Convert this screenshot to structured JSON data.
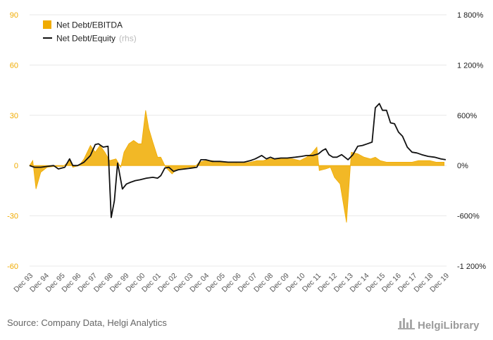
{
  "chart_data": {
    "type": "area+line",
    "title": "",
    "x_categories": [
      "Dec 93",
      "Dec 94",
      "Dec 95",
      "Dec 96",
      "Dec 97",
      "Dec 98",
      "Dec 99",
      "Dec 00",
      "Dec 01",
      "Dec 02",
      "Dec 03",
      "Dec 04",
      "Dec 05",
      "Dec 06",
      "Dec 07",
      "Dec 08",
      "Dec 09",
      "Dec 10",
      "Dec 11",
      "Dec 12",
      "Dec 13",
      "Dec 14",
      "Dec 15",
      "Dec 16",
      "Dec 17",
      "Dec 18",
      "Dec 19"
    ],
    "left_axis": {
      "ylim": [
        -60,
        90
      ],
      "ticks": [
        "90",
        "60",
        "30",
        "0",
        "-30",
        "-60"
      ],
      "tick_values": [
        90,
        60,
        30,
        0,
        -30,
        -60
      ],
      "color": "#f0ab00"
    },
    "right_axis": {
      "ylim": [
        -1200,
        1800
      ],
      "ticks": [
        "1 800%",
        "1 200%",
        "600%",
        "0%",
        "-600%",
        "-1 200%"
      ],
      "tick_values": [
        1800,
        1200,
        600,
        0,
        -600,
        -1200
      ]
    },
    "legend": {
      "placement": "top-left"
    },
    "series": [
      {
        "name": "Net Debt/EBITDA",
        "axis": "left",
        "type": "area",
        "color": "#f0ab00",
        "points": [
          [
            1993.9,
            0
          ],
          [
            1994.1,
            3
          ],
          [
            1994.3,
            -14
          ],
          [
            1994.6,
            -4
          ],
          [
            1995.0,
            -1
          ],
          [
            1995.5,
            -0.5
          ],
          [
            1996.0,
            -0.5
          ],
          [
            1996.4,
            3
          ],
          [
            1996.6,
            -1
          ],
          [
            1997.0,
            0
          ],
          [
            1997.3,
            4
          ],
          [
            1997.7,
            12
          ],
          [
            1998.0,
            8
          ],
          [
            1998.3,
            12
          ],
          [
            1998.6,
            8
          ],
          [
            1998.9,
            3
          ],
          [
            1999.3,
            4
          ],
          [
            1999.6,
            -1
          ],
          [
            1999.8,
            8
          ],
          [
            2000.1,
            13
          ],
          [
            2000.4,
            15
          ],
          [
            2000.7,
            13
          ],
          [
            2000.9,
            13
          ],
          [
            2001.15,
            33
          ],
          [
            2001.35,
            22
          ],
          [
            2001.6,
            14
          ],
          [
            2001.9,
            5
          ],
          [
            2002.1,
            5
          ],
          [
            2002.4,
            -1
          ],
          [
            2002.8,
            -5
          ],
          [
            2003.0,
            -3
          ],
          [
            2003.4,
            -2
          ],
          [
            2003.8,
            -1
          ],
          [
            2004.2,
            -1
          ],
          [
            2004.5,
            2
          ],
          [
            2004.9,
            3
          ],
          [
            2005.3,
            3
          ],
          [
            2005.7,
            2
          ],
          [
            2006.1,
            2
          ],
          [
            2006.5,
            2
          ],
          [
            2006.9,
            1.5
          ],
          [
            2007.3,
            1.5
          ],
          [
            2007.7,
            2
          ],
          [
            2008.1,
            3
          ],
          [
            2008.5,
            3
          ],
          [
            2008.9,
            4
          ],
          [
            2009.3,
            4
          ],
          [
            2009.8,
            4
          ],
          [
            2010.3,
            4
          ],
          [
            2010.8,
            3
          ],
          [
            2011.2,
            5
          ],
          [
            2011.5,
            7
          ],
          [
            2011.85,
            11
          ],
          [
            2012.0,
            -3
          ],
          [
            2012.4,
            -2
          ],
          [
            2012.7,
            -1
          ],
          [
            2012.95,
            -7
          ],
          [
            2013.3,
            -11
          ],
          [
            2013.7,
            -34
          ],
          [
            2014.0,
            8
          ],
          [
            2014.4,
            7
          ],
          [
            2014.8,
            5
          ],
          [
            2015.2,
            4
          ],
          [
            2015.5,
            5
          ],
          [
            2015.8,
            3
          ],
          [
            2016.2,
            2
          ],
          [
            2016.6,
            2
          ],
          [
            2017.0,
            2
          ],
          [
            2017.4,
            2
          ],
          [
            2017.8,
            2
          ],
          [
            2018.2,
            3
          ],
          [
            2018.5,
            3
          ],
          [
            2018.9,
            3
          ],
          [
            2019.3,
            2
          ],
          [
            2019.8,
            2
          ]
        ]
      },
      {
        "name": "Net Debt/Equity",
        "name_suffix": "(rhs)",
        "axis": "right",
        "type": "line",
        "color": "#111111",
        "points": [
          [
            1993.9,
            0
          ],
          [
            1994.2,
            -20
          ],
          [
            1994.6,
            -20
          ],
          [
            1995.0,
            -10
          ],
          [
            1995.4,
            0
          ],
          [
            1995.7,
            -40
          ],
          [
            1996.1,
            -20
          ],
          [
            1996.4,
            80
          ],
          [
            1996.6,
            0
          ],
          [
            1996.9,
            0
          ],
          [
            1997.3,
            40
          ],
          [
            1997.7,
            120
          ],
          [
            1998.0,
            250
          ],
          [
            1998.2,
            260
          ],
          [
            1998.5,
            220
          ],
          [
            1998.8,
            230
          ],
          [
            1999.0,
            -620
          ],
          [
            1999.2,
            -420
          ],
          [
            1999.4,
            30
          ],
          [
            1999.7,
            -280
          ],
          [
            1999.95,
            -220
          ],
          [
            2000.2,
            -200
          ],
          [
            2000.5,
            -180
          ],
          [
            2000.8,
            -170
          ],
          [
            2001.2,
            -150
          ],
          [
            2001.6,
            -140
          ],
          [
            2001.9,
            -150
          ],
          [
            2002.1,
            -120
          ],
          [
            2002.35,
            -30
          ],
          [
            2002.6,
            -20
          ],
          [
            2002.9,
            -70
          ],
          [
            2003.2,
            -50
          ],
          [
            2003.6,
            -40
          ],
          [
            2004.0,
            -30
          ],
          [
            2004.35,
            -20
          ],
          [
            2004.6,
            70
          ],
          [
            2004.9,
            70
          ],
          [
            2005.3,
            50
          ],
          [
            2005.8,
            50
          ],
          [
            2006.3,
            40
          ],
          [
            2006.8,
            40
          ],
          [
            2007.3,
            40
          ],
          [
            2007.7,
            60
          ],
          [
            2008.0,
            80
          ],
          [
            2008.4,
            120
          ],
          [
            2008.7,
            80
          ],
          [
            2008.95,
            100
          ],
          [
            2009.2,
            80
          ],
          [
            2009.6,
            90
          ],
          [
            2010.0,
            90
          ],
          [
            2010.5,
            100
          ],
          [
            2010.9,
            110
          ],
          [
            2011.2,
            120
          ],
          [
            2011.6,
            120
          ],
          [
            2011.95,
            140
          ],
          [
            2012.2,
            180
          ],
          [
            2012.4,
            200
          ],
          [
            2012.6,
            130
          ],
          [
            2012.85,
            100
          ],
          [
            2013.1,
            100
          ],
          [
            2013.4,
            130
          ],
          [
            2013.8,
            70
          ],
          [
            2014.1,
            130
          ],
          [
            2014.4,
            230
          ],
          [
            2014.7,
            240
          ],
          [
            2015.0,
            260
          ],
          [
            2015.3,
            280
          ],
          [
            2015.5,
            690
          ],
          [
            2015.75,
            740
          ],
          [
            2015.95,
            660
          ],
          [
            2016.2,
            660
          ],
          [
            2016.45,
            510
          ],
          [
            2016.7,
            500
          ],
          [
            2016.95,
            400
          ],
          [
            2017.2,
            350
          ],
          [
            2017.5,
            220
          ],
          [
            2017.8,
            160
          ],
          [
            2018.1,
            150
          ],
          [
            2018.4,
            130
          ],
          [
            2018.8,
            110
          ],
          [
            2019.2,
            100
          ],
          [
            2019.6,
            80
          ],
          [
            2019.9,
            70
          ]
        ]
      }
    ]
  },
  "legend": {
    "item1": "Net Debt/EBITDA",
    "item2": "Net Debt/Equity",
    "item2_suffix": "(rhs)"
  },
  "footer": {
    "source": "Source: Company Data, Helgi Analytics",
    "brand": "HelgiLibrary"
  }
}
